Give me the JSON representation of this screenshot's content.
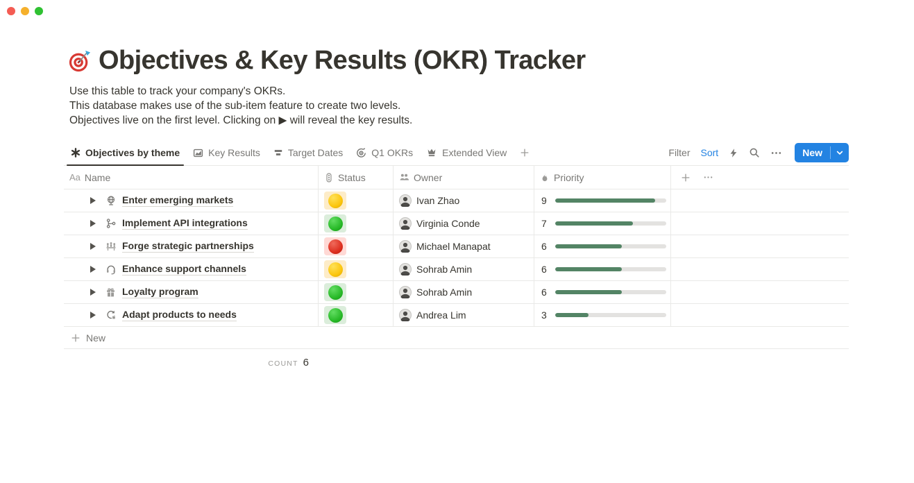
{
  "window": {
    "controls": [
      "close",
      "minimize",
      "zoom"
    ]
  },
  "page": {
    "icon_emoji": "🎯",
    "title": "Objectives & Key Results (OKR) Tracker",
    "description_lines": [
      "Use this table to track your company's OKRs.",
      "This database makes use of the sub-item feature to create two levels.",
      "Objectives live on the first level. Clicking on ▶ will reveal the key results."
    ]
  },
  "tabs": [
    {
      "label": "Objectives by theme",
      "icon": "asterisk",
      "active": true
    },
    {
      "label": "Key Results",
      "icon": "chart",
      "active": false
    },
    {
      "label": "Target Dates",
      "icon": "timeline",
      "active": false
    },
    {
      "label": "Q1 OKRs",
      "icon": "target",
      "active": false
    },
    {
      "label": "Extended View",
      "icon": "crown",
      "active": false
    }
  ],
  "toolbar": {
    "filter_label": "Filter",
    "sort_label": "Sort",
    "sort_active_color": "#2383e2",
    "new_button_label": "New",
    "accent_color": "#2383e2"
  },
  "table": {
    "columns": [
      {
        "label": "Name",
        "icon": "aa"
      },
      {
        "label": "Status",
        "icon": "traffic-light"
      },
      {
        "label": "Owner",
        "icon": "people"
      },
      {
        "label": "Priority",
        "icon": "flame"
      }
    ],
    "rows": [
      {
        "name": "Enter emerging markets",
        "name_icon": "globe",
        "status": "yellow",
        "owner": "Ivan Zhao",
        "priority": 9
      },
      {
        "name": "Implement API integrations",
        "name_icon": "api",
        "status": "green",
        "owner": "Virginia Conde",
        "priority": 7
      },
      {
        "name": "Forge strategic partnerships",
        "name_icon": "partnership",
        "status": "red",
        "owner": "Michael Manapat",
        "priority": 6
      },
      {
        "name": "Enhance support channels",
        "name_icon": "headset",
        "status": "yellow",
        "owner": "Sohrab Amin",
        "priority": 6
      },
      {
        "name": "Loyalty program",
        "name_icon": "gift",
        "status": "green",
        "owner": "Sohrab Amin",
        "priority": 6
      },
      {
        "name": "Adapt products to needs",
        "name_icon": "sync",
        "status": "green",
        "owner": "Andrea Lim",
        "priority": 3
      }
    ],
    "priority_max": 10,
    "priority_bar_color": "#538465",
    "priority_track_color": "#e3e2e0",
    "status_styles": {
      "yellow": {
        "bg": "#fdecc8",
        "top": "#ffe158",
        "main": "#fbc50d",
        "rim": "#d9a508"
      },
      "green": {
        "bg": "#dbeddb",
        "top": "#62dd62",
        "main": "#27b927",
        "rim": "#149114"
      },
      "red": {
        "bg": "#ffd9d5",
        "top": "#ef6a5b",
        "main": "#dd2e1f",
        "rim": "#b01d10"
      }
    },
    "new_row_label": "New",
    "count_label": "COUNT",
    "count_value": 6
  }
}
